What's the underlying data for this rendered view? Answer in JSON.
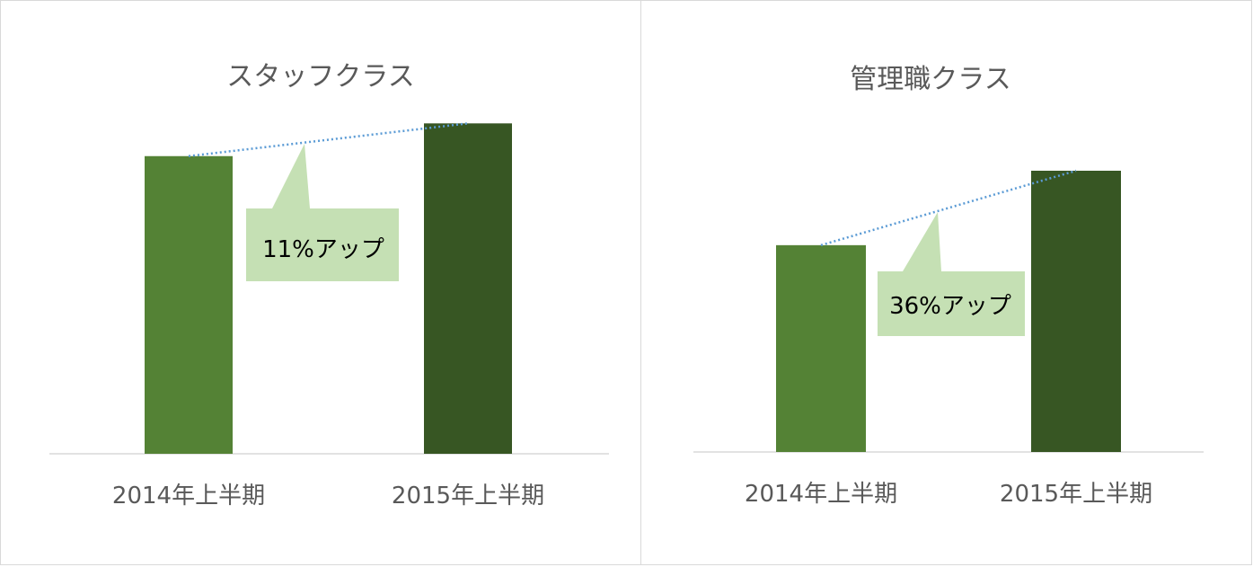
{
  "chart_data": [
    {
      "type": "bar",
      "title": "スタッフクラス",
      "categories": [
        "2014年上半期",
        "2015年上半期"
      ],
      "values": [
        100,
        111
      ],
      "ylim": [
        0,
        112
      ],
      "colors": [
        "#548235",
        "#375623"
      ],
      "callout": "11%アップ",
      "callout_color": "#c5e0b4",
      "trend_line_color": "#5b9bd5",
      "grid": false
    },
    {
      "type": "bar",
      "title": "管理職クラス",
      "categories": [
        "2014年上半期",
        "2015年上半期"
      ],
      "values": [
        100,
        136
      ],
      "ylim": [
        0,
        136
      ],
      "colors": [
        "#548235",
        "#375623"
      ],
      "callout": "36%アップ",
      "callout_color": "#c5e0b4",
      "trend_line_color": "#5b9bd5",
      "grid": false
    }
  ]
}
